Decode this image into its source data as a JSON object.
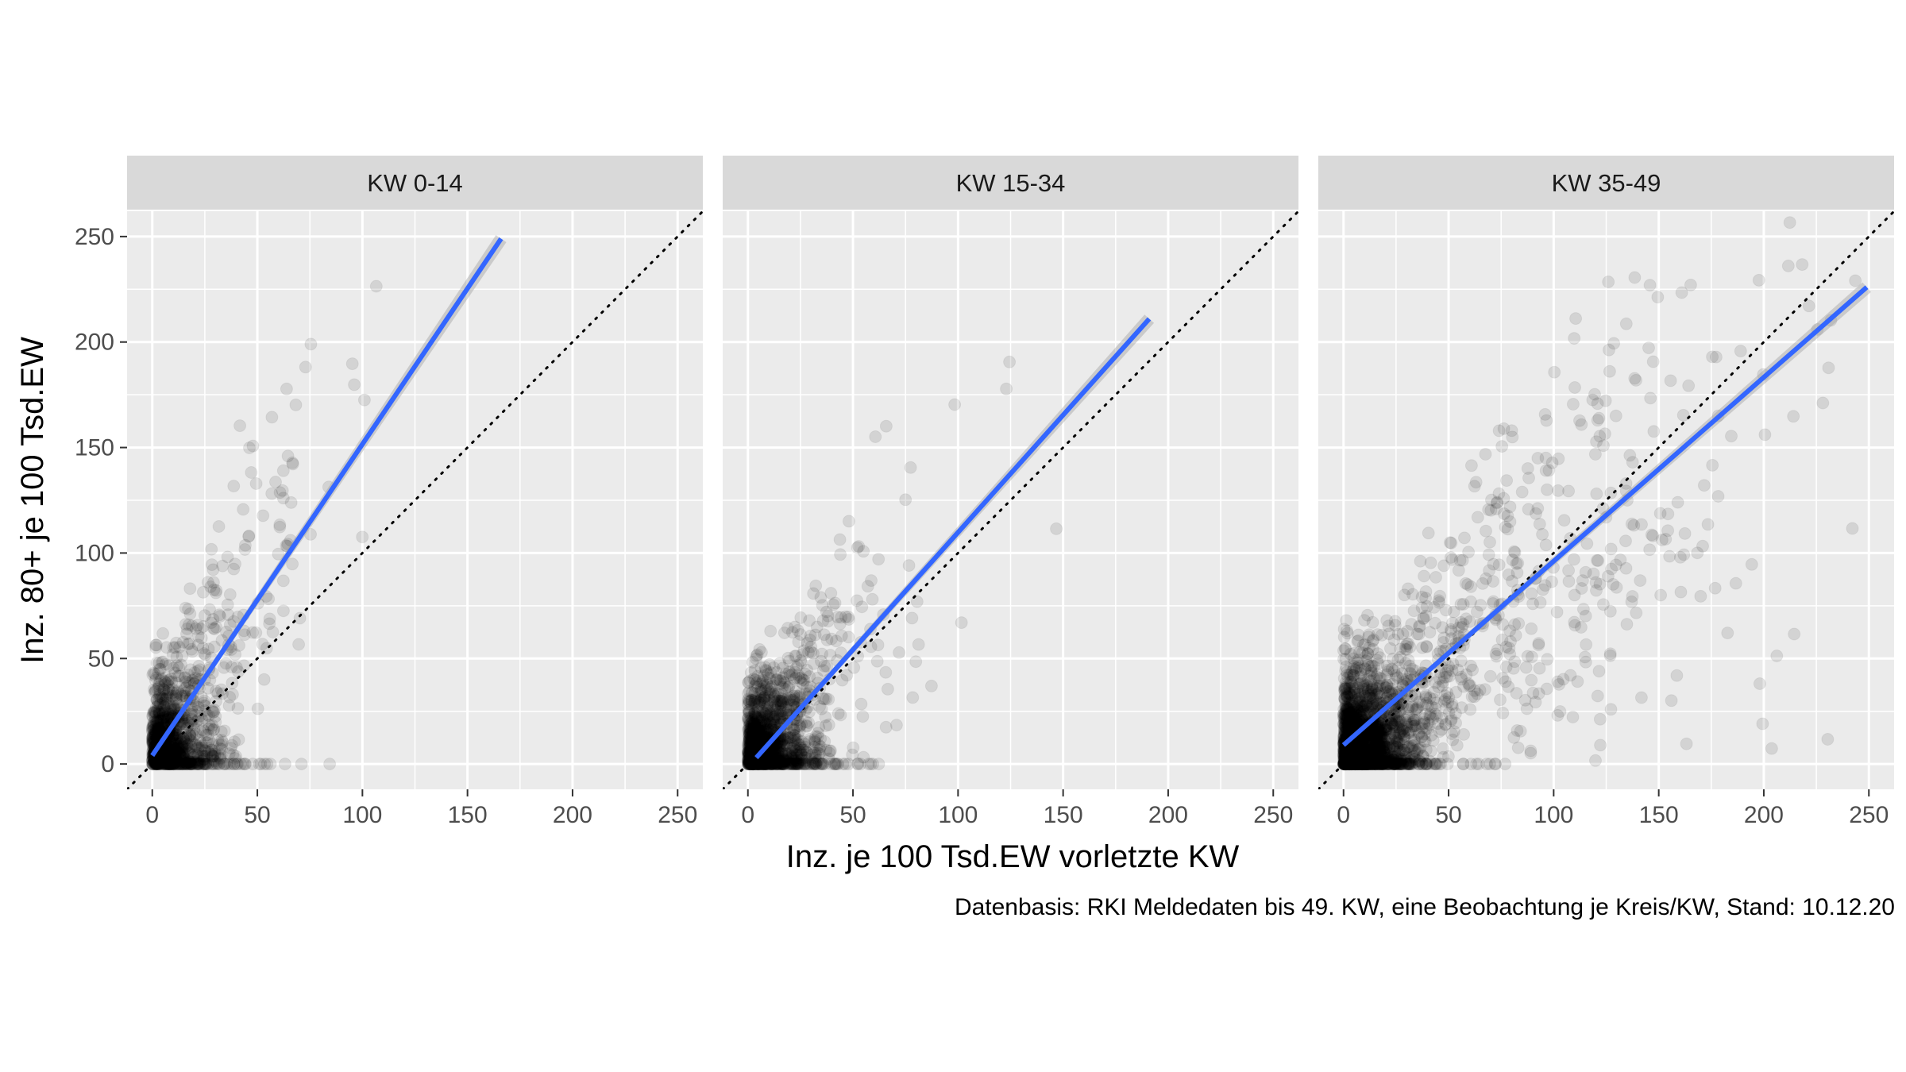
{
  "chart_data": {
    "type": "scatter",
    "caption": "Datenbasis: RKI Meldedaten bis 49. KW, eine Beobachtung je Kreis/KW, Stand: 10.12.20",
    "xlabel": "Inz. je 100 Tsd.EW vorletzte KW",
    "ylabel": "Inz. 80+ je 100 Tsd.EW",
    "xlim": [
      -12,
      262
    ],
    "ylim": [
      -12,
      262
    ],
    "x_ticks": [
      0,
      50,
      100,
      150,
      200,
      250
    ],
    "y_ticks": [
      0,
      50,
      100,
      150,
      200,
      250
    ],
    "point_color": "#000000",
    "point_alpha": 0.1,
    "fit_color": "#3366FF",
    "identity_line": {
      "style": "dotted",
      "slope": 1,
      "intercept": 0
    },
    "grid": true,
    "panels": [
      {
        "label": "KW 0-14",
        "fit": {
          "x0": 0,
          "y0": 4,
          "x1": 166,
          "y1": 249
        },
        "density": {
          "n": 1300,
          "xmax": 165,
          "k": 0.045,
          "slope": 1.5,
          "intercept": 4
        }
      },
      {
        "label": "KW 15-34",
        "fit": {
          "x0": 4,
          "y0": 3,
          "x1": 191,
          "y1": 211
        },
        "density": {
          "n": 1600,
          "xmax": 190,
          "k": 0.05,
          "slope": 1.1,
          "intercept": 0
        }
      },
      {
        "label": "KW 35-49",
        "fit": {
          "x0": 0,
          "y0": 9,
          "x1": 249,
          "y1": 226
        },
        "density": {
          "n": 2800,
          "xmax": 250,
          "k": 0.016,
          "slope": 0.9,
          "intercept": 5
        }
      }
    ]
  }
}
